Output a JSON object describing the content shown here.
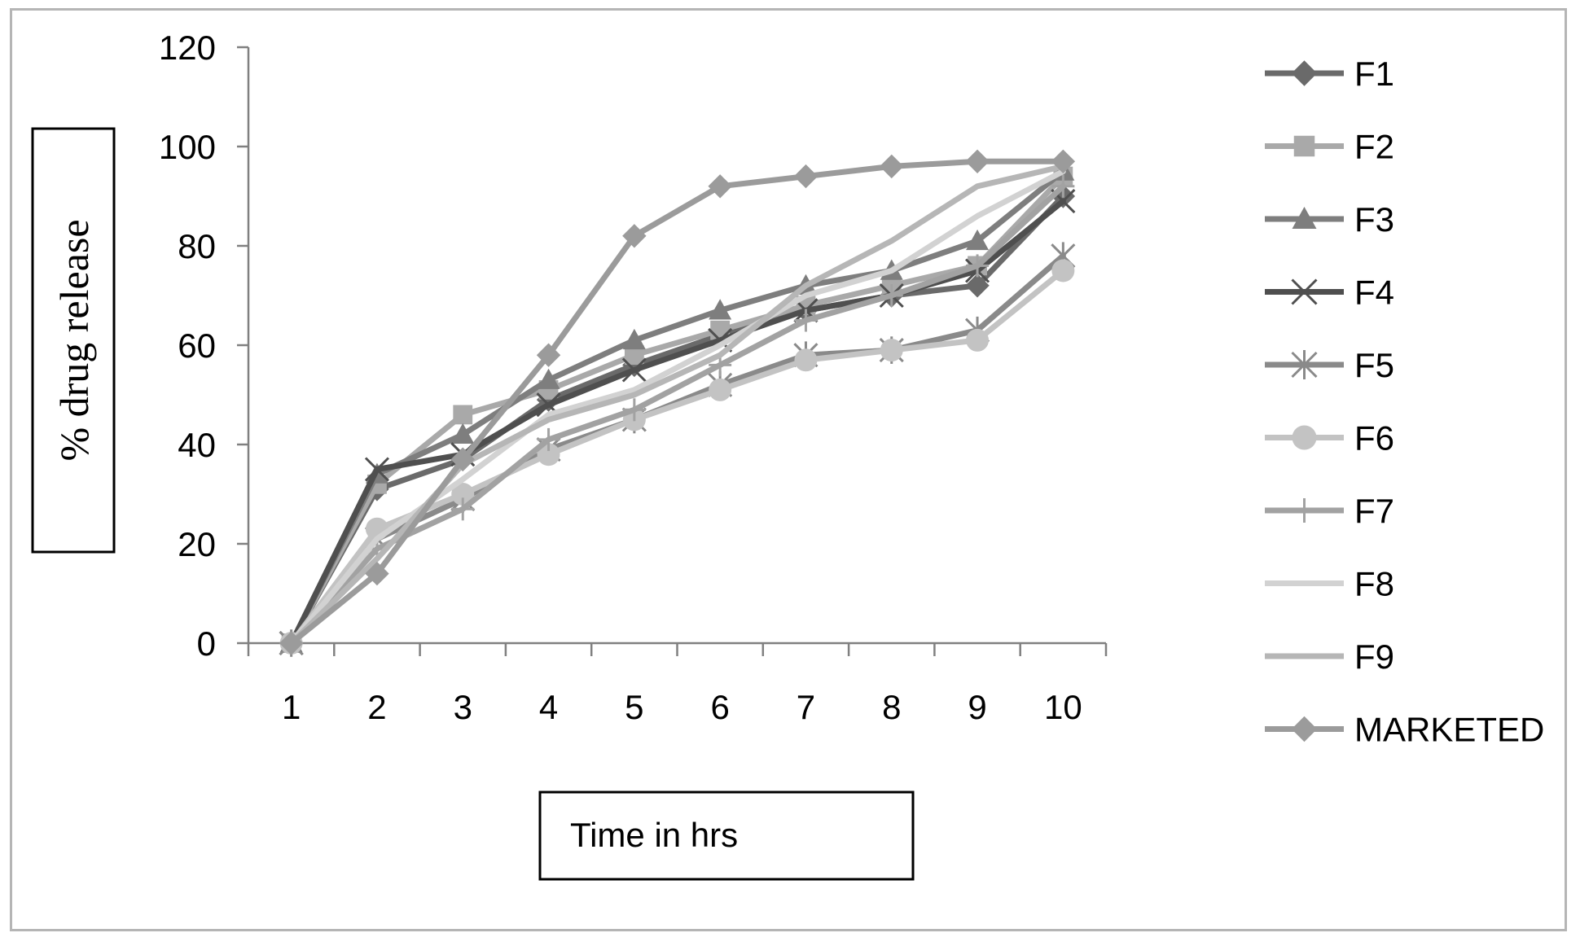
{
  "chart_data": {
    "type": "line",
    "title": "",
    "xlabel": "Time in hrs",
    "ylabel": "% drug release",
    "categories": [
      "1",
      "2",
      "3",
      "4",
      "5",
      "6",
      "7",
      "8",
      "9",
      "10"
    ],
    "ylim": [
      0,
      120
    ],
    "yticks": [
      0,
      20,
      40,
      60,
      80,
      100,
      120
    ],
    "grid": false,
    "legend_position": "right",
    "series": [
      {
        "name": "F1",
        "marker": "diamond",
        "color": "#6a6a6a",
        "values": [
          0,
          31,
          37,
          49,
          56,
          62,
          67,
          70,
          72,
          90
        ]
      },
      {
        "name": "F2",
        "marker": "square",
        "color": "#a9a9a9",
        "values": [
          0,
          32,
          46,
          51,
          58,
          63,
          68,
          72,
          76,
          94
        ]
      },
      {
        "name": "F3",
        "marker": "triangle",
        "color": "#7e7e7e",
        "values": [
          0,
          34,
          42,
          53,
          61,
          67,
          72,
          75,
          81,
          95
        ]
      },
      {
        "name": "F4",
        "marker": "x",
        "color": "#4f4f4f",
        "values": [
          0,
          35,
          38,
          48,
          55,
          61,
          67,
          70,
          75,
          89
        ]
      },
      {
        "name": "F5",
        "marker": "asterisk",
        "color": "#8a8a8a",
        "values": [
          0,
          21,
          29,
          39,
          45,
          52,
          58,
          59,
          63,
          78
        ]
      },
      {
        "name": "F6",
        "marker": "circle",
        "color": "#c3c3c3",
        "values": [
          0,
          23,
          30,
          38,
          45,
          51,
          57,
          59,
          61,
          75
        ]
      },
      {
        "name": "F7",
        "marker": "plus",
        "color": "#a2a2a2",
        "values": [
          0,
          19,
          27,
          41,
          47,
          56,
          65,
          70,
          76,
          92
        ]
      },
      {
        "name": "F8",
        "marker": "none",
        "color": "#d2d2d2",
        "values": [
          0,
          21,
          33,
          46,
          51,
          60,
          70,
          75,
          86,
          95
        ]
      },
      {
        "name": "F9",
        "marker": "none",
        "color": "#b6b6b6",
        "values": [
          0,
          17,
          36,
          45,
          50,
          58,
          72,
          81,
          92,
          96
        ]
      },
      {
        "name": "MARKETED",
        "marker": "diamond",
        "color": "#9b9b9b",
        "values": [
          0,
          14,
          37,
          58,
          82,
          92,
          94,
          96,
          97,
          97
        ]
      }
    ]
  }
}
